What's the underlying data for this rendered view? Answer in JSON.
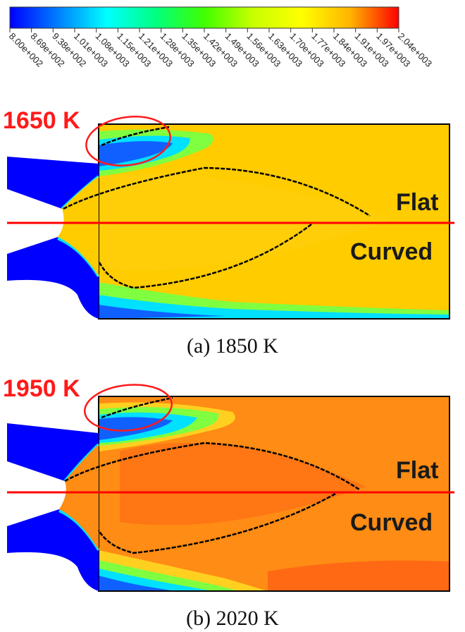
{
  "colorbar": {
    "ticks": [
      "8.00e+002",
      "8.69e+002",
      "9.38e+002",
      "1.01e+003",
      "1.08e+003",
      "1.15e+003",
      "1.21e+003",
      "1.28e+003",
      "1.35e+003",
      "1.42e+003",
      "1.49e+003",
      "1.56e+003",
      "1.63e+003",
      "1.70e+003",
      "1.77e+003",
      "1.84e+003",
      "1.91e+003",
      "1.97e+003",
      "2.04e+003"
    ],
    "colors": [
      "#0000ff",
      "#0080ff",
      "#00ffff",
      "#00ff80",
      "#40ff00",
      "#c8ff00",
      "#ffff00",
      "#ffb400",
      "#ff0000"
    ],
    "min": 800,
    "max": 2040
  },
  "panels": [
    {
      "annotation": "1650 K",
      "label_top": "Flat",
      "label_bottom": "Curved",
      "caption": "(a) 1850 K",
      "field_color": "#ffcc00",
      "plume_color": "#ffd21a"
    },
    {
      "annotation": "1950 K",
      "label_top": "Flat",
      "label_bottom": "Curved",
      "caption": "(b) 2020 K",
      "field_color": "#ff8c14",
      "plume_color": "#ff5a14"
    }
  ],
  "colors": {
    "cold": "#0000ff",
    "annotation": "#ff1a1a",
    "divider": "#ff0000",
    "contour": "#000000"
  }
}
